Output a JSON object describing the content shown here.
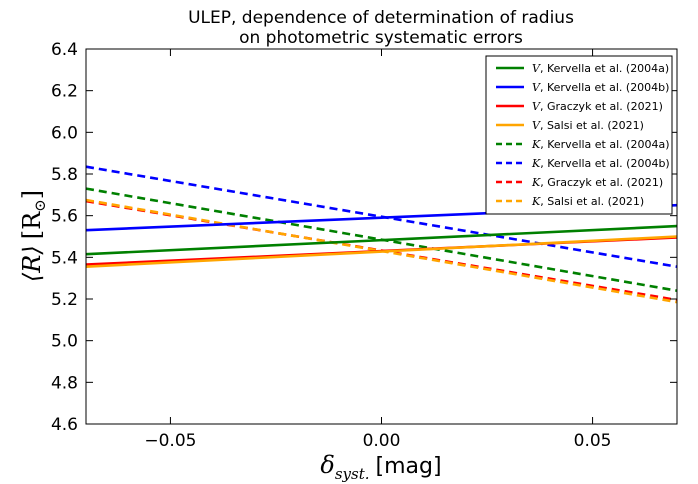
{
  "chart_data": {
    "type": "line",
    "title": "ULEP, dependence of determination of radius",
    "subtitle": "on photometric systematic errors",
    "xlabel_symbol": "δ",
    "xlabel_subscript": "syst.",
    "xlabel_unit": "[mag]",
    "ylabel_symbol": "⟨R⟩",
    "ylabel_unit": "[R",
    "ylabel_unit_sub": "⊙",
    "ylabel_unit_close": "]",
    "xlim": [
      -0.07,
      0.07
    ],
    "ylim": [
      4.6,
      6.4
    ],
    "xticks": [
      -0.05,
      0.0,
      0.05
    ],
    "xtick_labels": [
      "−0.05",
      "0.00",
      "0.05"
    ],
    "yticks": [
      4.6,
      4.8,
      5.0,
      5.2,
      5.4,
      5.6,
      5.8,
      6.0,
      6.2,
      6.4
    ],
    "ytick_labels": [
      "4.6",
      "4.8",
      "5.0",
      "5.2",
      "5.4",
      "5.6",
      "5.8",
      "6.0",
      "6.2",
      "6.4"
    ],
    "grid": false,
    "legend_position": "top-right",
    "x": [
      -0.07,
      0.07
    ],
    "series": [
      {
        "band": "V",
        "name": ", Kervella et al. (2004a)",
        "color": "#008000",
        "dashed": false,
        "values": [
          5.415,
          5.55
        ]
      },
      {
        "band": "V",
        "name": ", Kervella et al. (2004b)",
        "color": "#0000ff",
        "dashed": false,
        "values": [
          5.53,
          5.65
        ]
      },
      {
        "band": "V",
        "name": ", Graczyk et al. (2021)",
        "color": "#ff0000",
        "dashed": false,
        "values": [
          5.365,
          5.495
        ]
      },
      {
        "band": "V",
        "name": ", Salsi et al. (2021)",
        "color": "#ffa500",
        "dashed": false,
        "values": [
          5.355,
          5.5
        ]
      },
      {
        "band": "K",
        "name": ", Kervella et al. (2004a)",
        "color": "#008000",
        "dashed": true,
        "values": [
          5.73,
          5.24
        ]
      },
      {
        "band": "K",
        "name": ", Kervella et al. (2004b)",
        "color": "#0000ff",
        "dashed": true,
        "values": [
          5.835,
          5.355
        ]
      },
      {
        "band": "K",
        "name": ", Graczyk et al. (2021)",
        "color": "#ff0000",
        "dashed": true,
        "values": [
          5.67,
          5.195
        ]
      },
      {
        "band": "K",
        "name": ", Salsi et al. (2021)",
        "color": "#ffa500",
        "dashed": true,
        "values": [
          5.675,
          5.185
        ]
      }
    ]
  }
}
